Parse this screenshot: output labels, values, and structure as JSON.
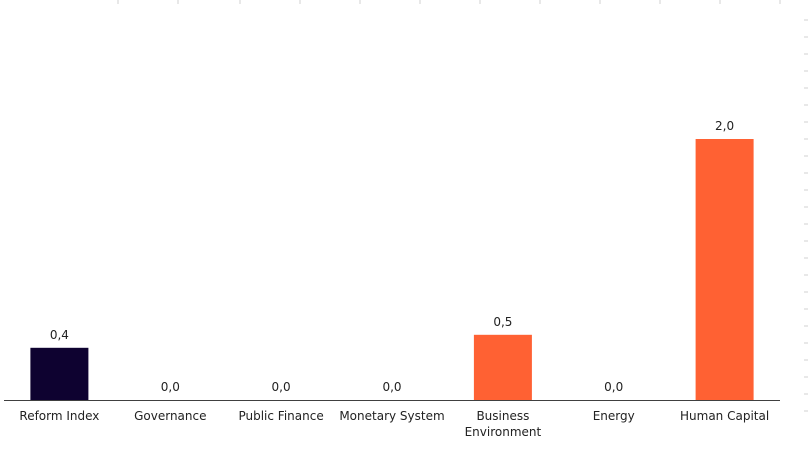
{
  "chart_data": {
    "type": "bar",
    "categories": [
      "Reform Index",
      "Governance",
      "Public Finance",
      "Monetary System",
      "Business Environment",
      "Energy",
      "Human Capital"
    ],
    "category_lines": [
      [
        "Reform Index"
      ],
      [
        "Governance"
      ],
      [
        "Public Finance"
      ],
      [
        "Monetary System"
      ],
      [
        "Business",
        "Environment"
      ],
      [
        "Energy"
      ],
      [
        "Human Capital"
      ]
    ],
    "values": [
      0.4,
      0.0,
      0.0,
      0.0,
      0.5,
      0.0,
      2.0
    ],
    "value_labels": [
      "0,4",
      "0,0",
      "0,0",
      "0,0",
      "0,5",
      "0,0",
      "2,0"
    ],
    "bar_colors": [
      "#0e0230",
      "#ff6133",
      "#ff6133",
      "#ff6133",
      "#ff6133",
      "#ff6133",
      "#ff6133"
    ],
    "title": "",
    "xlabel": "",
    "ylabel": "",
    "ylim": [
      0,
      2.3
    ],
    "grid": false,
    "legend": "none"
  },
  "colors": {
    "reform_index": "#0e0230",
    "components": "#ff6133",
    "axis": "#404040",
    "tick": "#d0d0d0"
  }
}
